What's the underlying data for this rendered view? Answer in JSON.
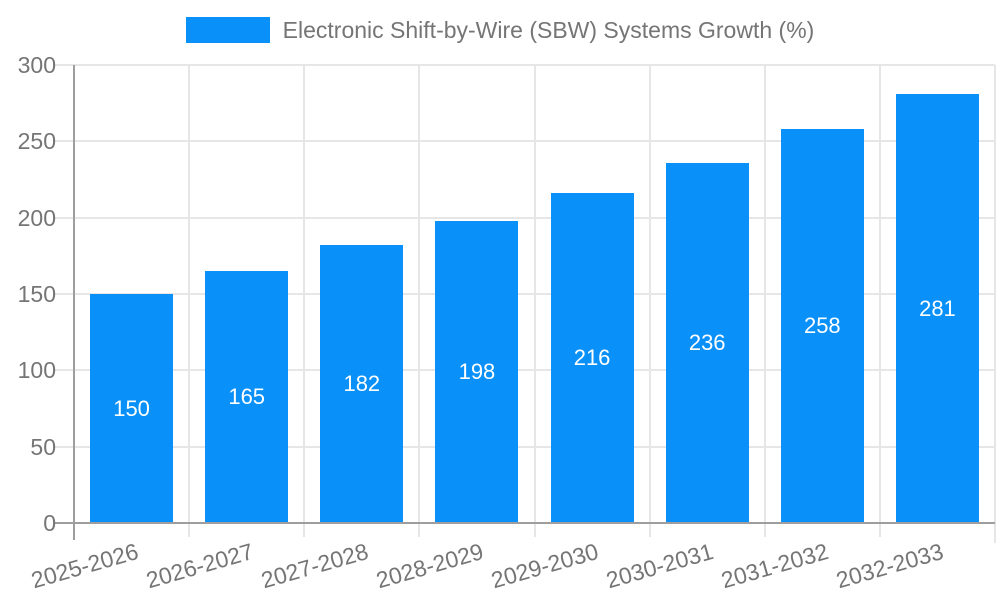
{
  "chart_data": {
    "type": "bar",
    "title": "Electronic Shift-by-Wire (SBW) Systems Growth (%)",
    "legend": "Electronic Shift-by-Wire (SBW) Systems Growth (%)",
    "legend_position": "top-center",
    "categories": [
      "2025-2026",
      "2026-2027",
      "2027-2028",
      "2028-2029",
      "2029-2030",
      "2030-2031",
      "2031-2032",
      "2032-2033"
    ],
    "values": [
      150,
      165,
      182,
      198,
      216,
      236,
      258,
      281
    ],
    "value_labels_shown": true,
    "xlabel": "",
    "ylabel": "",
    "ylim": [
      0,
      300
    ],
    "yticks": [
      0,
      50,
      100,
      150,
      200,
      250,
      300
    ],
    "grid": "on",
    "x_tick_label_rotation_deg": -16
  },
  "colors": {
    "bar": "#0990f9",
    "grid": "#e6e6e6",
    "axis": "#9e9e9e",
    "tick_text": "#757575",
    "legend_text": "#757575",
    "value_label": "#ffffff",
    "background": "#ffffff"
  }
}
